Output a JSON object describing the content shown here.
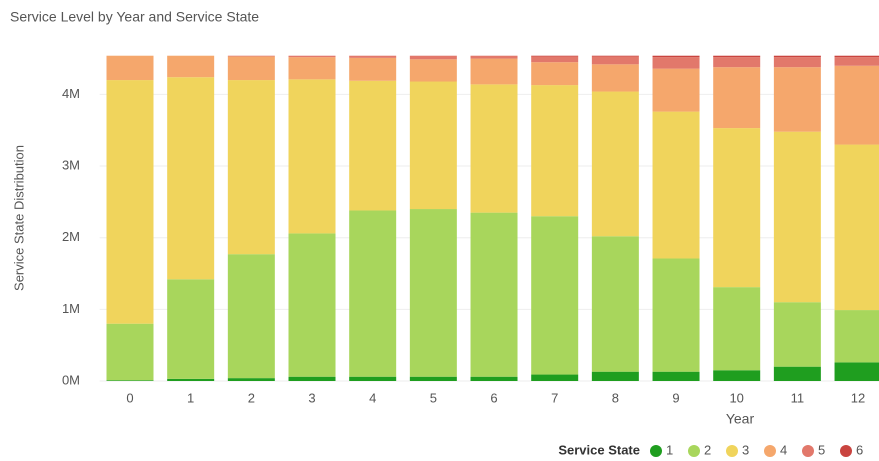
{
  "chart_data": {
    "type": "stacked_bar",
    "title": "Service Level by Year and Service State",
    "x_label": "Year",
    "y_label": "Service State Distribution",
    "legend_title": "Service State",
    "legend_position": "bottom-right",
    "grid": true,
    "categories": [
      "0",
      "1",
      "2",
      "3",
      "4",
      "5",
      "6",
      "7",
      "8",
      "9",
      "10",
      "11",
      "12"
    ],
    "ylim": [
      0,
      4550000
    ],
    "yticks": [
      {
        "value": 0,
        "label": "0M"
      },
      {
        "value": 1000000,
        "label": "1M"
      },
      {
        "value": 2000000,
        "label": "2M"
      },
      {
        "value": 3000000,
        "label": "3M"
      },
      {
        "value": 4000000,
        "label": "4M"
      }
    ],
    "series": [
      {
        "name": "1",
        "color": "#1f9e1f",
        "values": [
          10000,
          30000,
          40000,
          60000,
          60000,
          60000,
          60000,
          90000,
          130000,
          130000,
          150000,
          200000,
          260000
        ]
      },
      {
        "name": "2",
        "color": "#a8d65c",
        "values": [
          790000,
          1390000,
          1730000,
          2000000,
          2320000,
          2340000,
          2290000,
          2210000,
          1890000,
          1580000,
          1160000,
          900000,
          730000
        ]
      },
      {
        "name": "3",
        "color": "#f0d45c",
        "values": [
          3400000,
          2820000,
          2430000,
          2150000,
          1810000,
          1780000,
          1790000,
          1830000,
          2020000,
          2050000,
          2220000,
          2380000,
          2310000
        ]
      },
      {
        "name": "4",
        "color": "#f5a76c",
        "values": [
          340000,
          300000,
          330000,
          310000,
          320000,
          310000,
          360000,
          320000,
          380000,
          600000,
          850000,
          900000,
          1100000
        ]
      },
      {
        "name": "5",
        "color": "#e2786b",
        "values": [
          0,
          0,
          10000,
          20000,
          30000,
          50000,
          40000,
          80000,
          110000,
          160000,
          140000,
          140000,
          120000
        ]
      },
      {
        "name": "6",
        "color": "#c9443f",
        "values": [
          0,
          0,
          0,
          0,
          0,
          0,
          0,
          10000,
          10000,
          20000,
          20000,
          20000,
          20000
        ]
      }
    ]
  }
}
